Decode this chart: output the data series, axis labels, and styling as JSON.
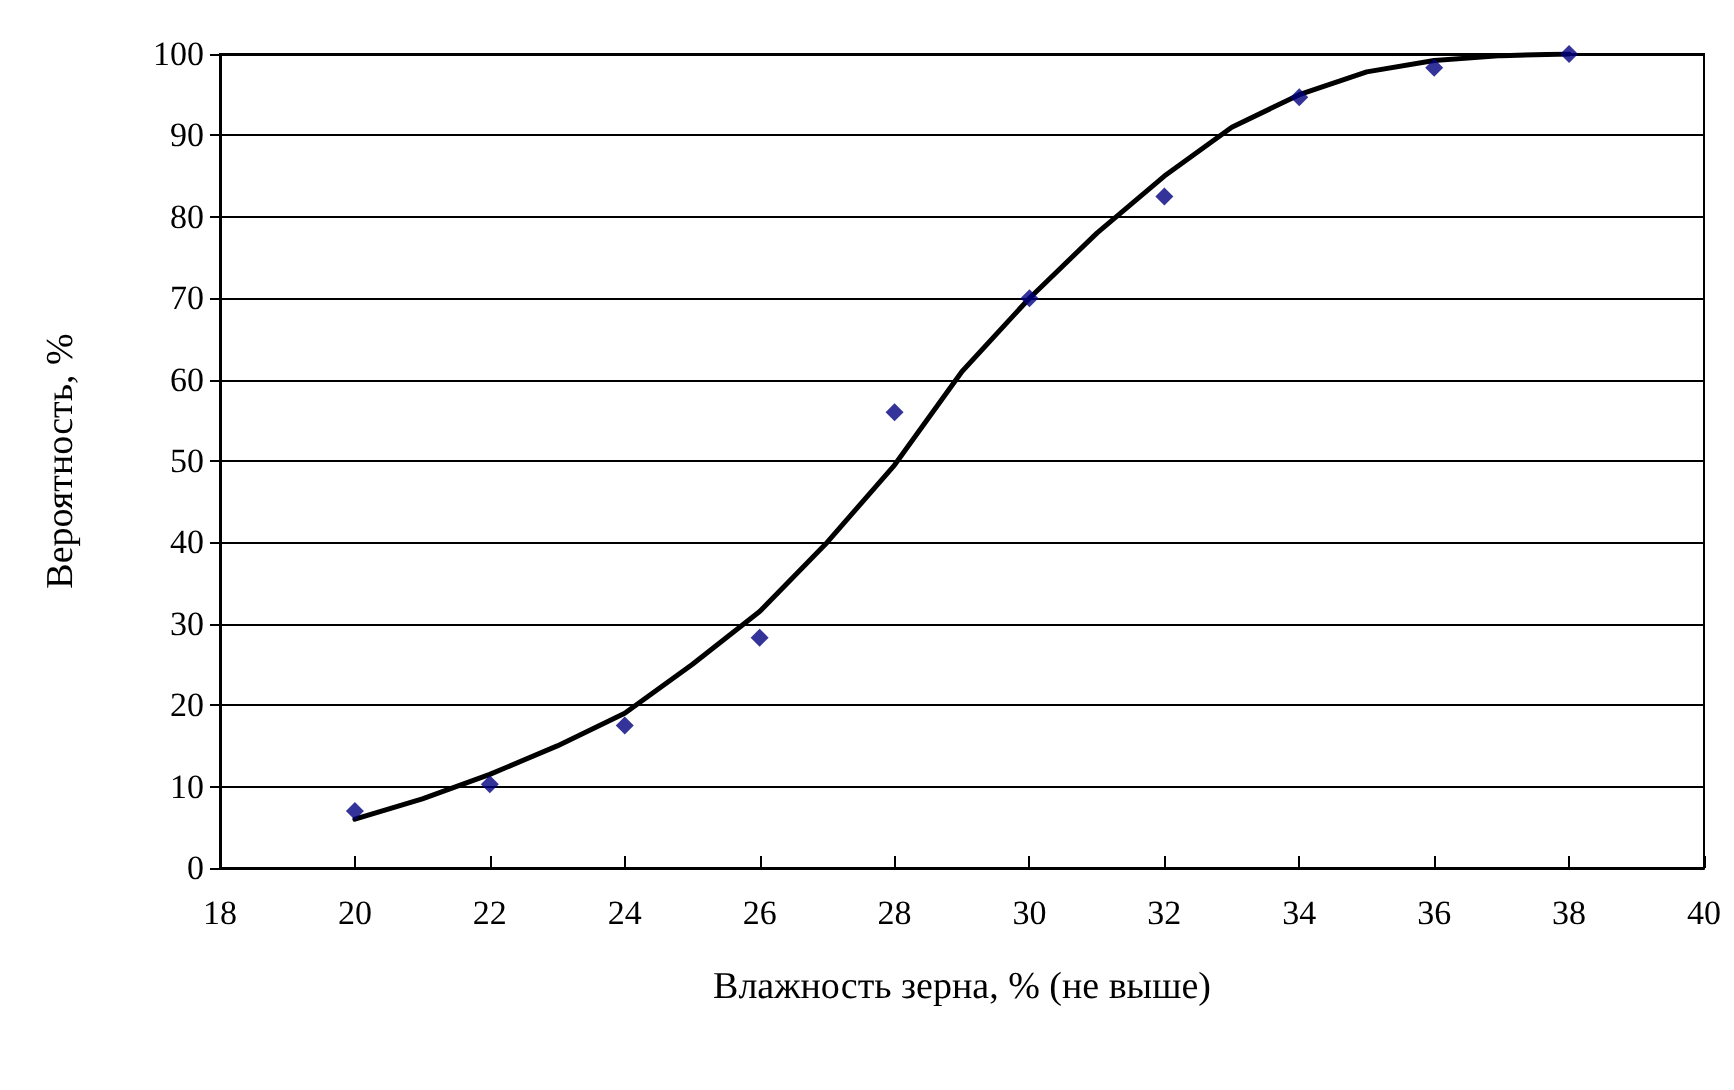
{
  "chart_data": {
    "type": "scatter",
    "xlabel": "Влажность зерна, % (не выше)",
    "ylabel": "Вероятность, %",
    "xlim": [
      18,
      40
    ],
    "xticks": [
      18,
      20,
      22,
      24,
      26,
      28,
      30,
      32,
      34,
      36,
      38,
      40
    ],
    "ylim": [
      0,
      100
    ],
    "yticks": [
      0,
      10,
      20,
      30,
      40,
      50,
      60,
      70,
      80,
      90,
      100
    ],
    "grid": "y",
    "series": [
      {
        "marker": "diamond",
        "color": "#000080",
        "x": [
          20,
          22,
          24,
          26,
          28,
          30,
          32,
          34,
          36,
          38
        ],
        "values": [
          7,
          10.3,
          17.5,
          28.3,
          56,
          70,
          82.5,
          94.7,
          98.3,
          100
        ]
      },
      {
        "type": "line",
        "marker": "none",
        "line_style": "solid",
        "color": "#000000",
        "x": [
          20,
          21,
          22,
          23,
          24,
          25,
          26,
          27,
          28,
          29,
          30,
          31,
          32,
          33,
          34,
          35,
          36,
          37,
          38
        ],
        "values": [
          6,
          8.5,
          11.5,
          15,
          19,
          25,
          31.5,
          40,
          49.5,
          61,
          70,
          78,
          85,
          91,
          95,
          97.8,
          99.2,
          99.8,
          100
        ]
      }
    ]
  }
}
